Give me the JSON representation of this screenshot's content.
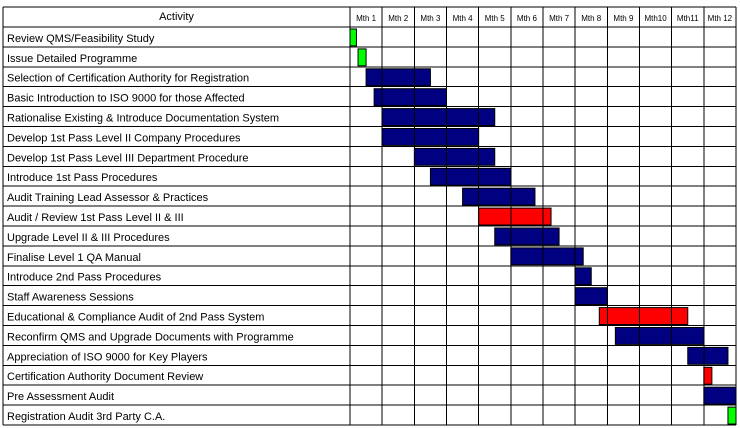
{
  "chart_data": {
    "type": "gantt",
    "header": {
      "activity_label": "Activity"
    },
    "months": [
      "Mth 1",
      "Mth 2",
      "Mth 3",
      "Mth 4",
      "Mth 5",
      "Mth 6",
      "Mth 7",
      "Mth 8",
      "Mth 9",
      "Mth10",
      "Mth11",
      "Mth 12"
    ],
    "month_range": [
      0,
      12
    ],
    "colors": {
      "blue": "#000080",
      "red": "#ff0000",
      "green": "#00ff00"
    },
    "tasks": [
      {
        "name": "Review QMS/Feasibility Study",
        "start": 0,
        "end": 0.2,
        "color": "green"
      },
      {
        "name": "Issue Detailed Programme",
        "start": 0.25,
        "end": 0.5,
        "color": "green"
      },
      {
        "name": "Selection of Certification Authority for Registration",
        "start": 0.5,
        "end": 2.5,
        "color": "blue"
      },
      {
        "name": "Basic Introduction to ISO 9000 for those Affected",
        "start": 0.75,
        "end": 3.0,
        "color": "blue"
      },
      {
        "name": "Rationalise Existing & Introduce Documentation System",
        "start": 1.0,
        "end": 4.5,
        "color": "blue"
      },
      {
        "name": "Develop 1st Pass Level II Company Procedures",
        "start": 1.0,
        "end": 4.0,
        "color": "blue"
      },
      {
        "name": "Develop 1st Pass Level III Department Procedure",
        "start": 2.0,
        "end": 4.5,
        "color": "blue"
      },
      {
        "name": "Introduce 1st Pass Procedures",
        "start": 2.5,
        "end": 5.0,
        "color": "blue"
      },
      {
        "name": "Audit Training Lead Assessor & Practices",
        "start": 3.5,
        "end": 5.75,
        "color": "blue"
      },
      {
        "name": "Audit / Review 1st Pass Level II & III",
        "start": 4.0,
        "end": 6.25,
        "color": "red"
      },
      {
        "name": "Upgrade Level II & III Procedures",
        "start": 4.5,
        "end": 6.5,
        "color": "blue"
      },
      {
        "name": "Finalise Level 1 QA Manual",
        "start": 5.0,
        "end": 7.25,
        "color": "blue"
      },
      {
        "name": "Introduce 2nd Pass Procedures",
        "start": 7.0,
        "end": 7.5,
        "color": "blue"
      },
      {
        "name": "Staff Awareness Sessions",
        "start": 7.0,
        "end": 8.0,
        "color": "blue"
      },
      {
        "name": "Educational & Compliance Audit of 2nd Pass System",
        "start": 7.75,
        "end": 10.5,
        "color": "red"
      },
      {
        "name": "Reconfirm QMS and Upgrade Documents with Programme",
        "start": 8.25,
        "end": 11.0,
        "color": "blue"
      },
      {
        "name": "Appreciation of ISO 9000 for Key Players",
        "start": 10.5,
        "end": 11.75,
        "color": "blue"
      },
      {
        "name": "Certification Authority Document Review",
        "start": 11.0,
        "end": 11.25,
        "color": "red"
      },
      {
        "name": "Pre Assessment Audit",
        "start": 11.0,
        "end": 12.0,
        "color": "blue"
      },
      {
        "name": "Registration Audit 3rd Party C.A.",
        "start": 11.75,
        "end": 12.0,
        "color": "green"
      }
    ]
  }
}
